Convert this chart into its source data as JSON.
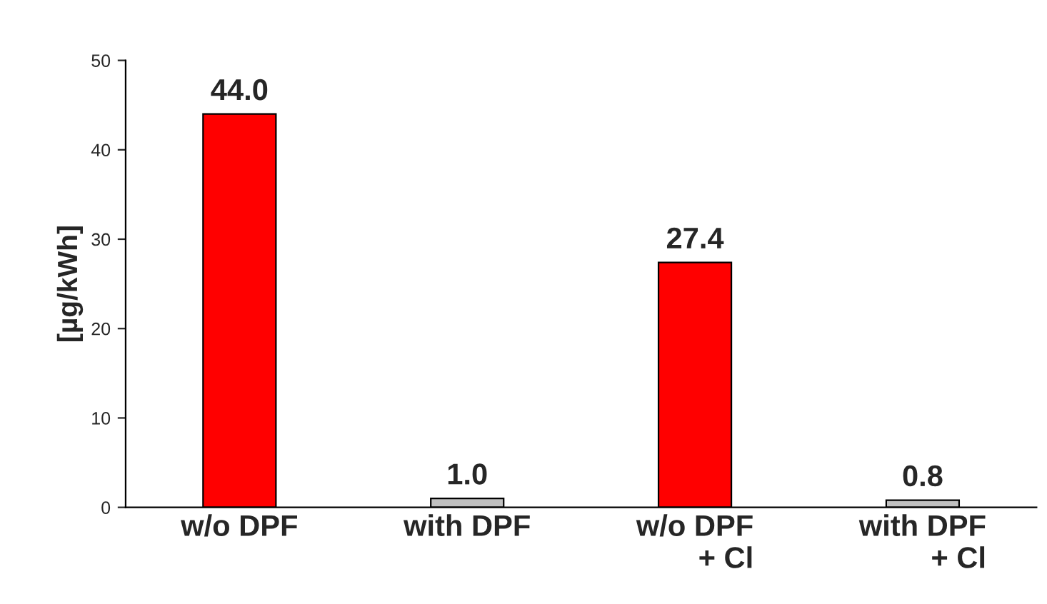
{
  "chart_data": {
    "type": "bar",
    "ylabel": "[µg/kWh]",
    "categories": [
      "w/o DPF",
      "with DPF",
      "w/o DPF\n+ Cl",
      "with DPF\n+ Cl"
    ],
    "values": [
      44.0,
      1.0,
      27.4,
      0.8
    ],
    "colors": [
      "#ff0000",
      "#c0c0c0",
      "#ff0000",
      "#c0c0c0"
    ],
    "value_labels": [
      "44.0",
      "1.0",
      "27.4",
      "0.8"
    ],
    "ylim": [
      0,
      50
    ],
    "yticks": [
      0,
      10,
      20,
      30,
      40,
      50
    ],
    "grid": false,
    "legend": false
  }
}
